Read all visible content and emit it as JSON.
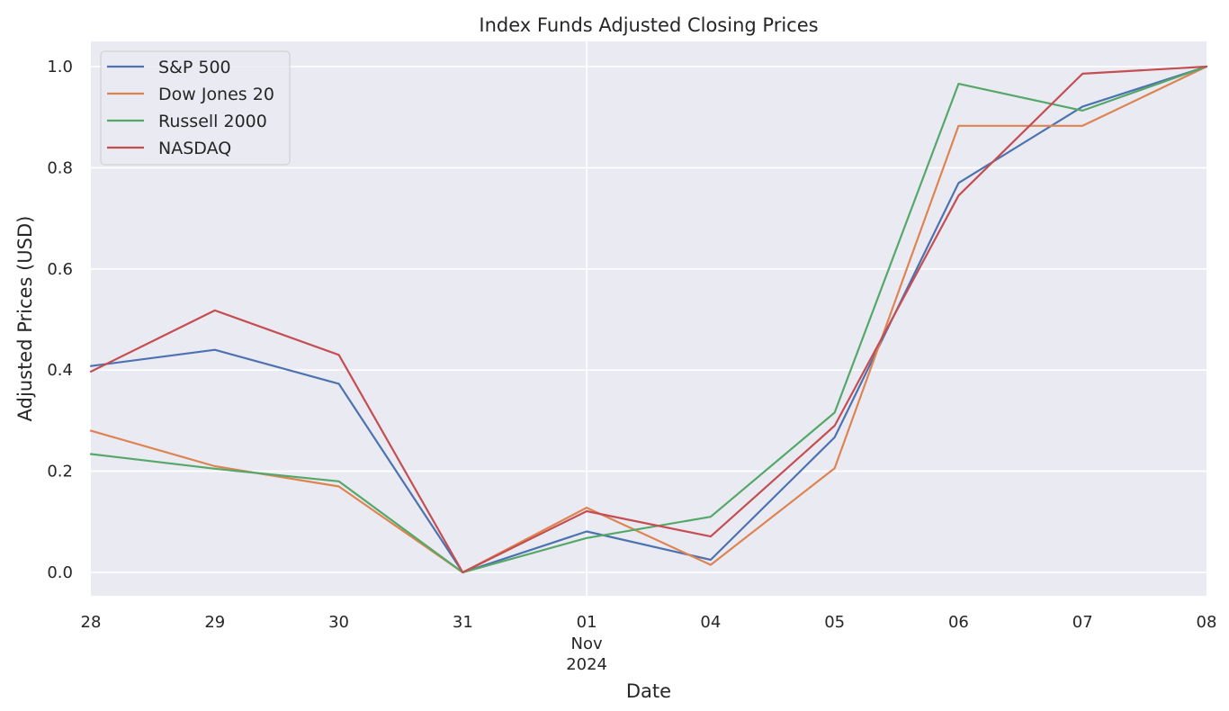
{
  "chart_data": {
    "type": "line",
    "title": "Index Funds Adjusted Closing Prices",
    "xlabel": "Date",
    "ylabel": "Adjusted Prices (USD)",
    "x": [
      "2024-10-28",
      "2024-10-29",
      "2024-10-30",
      "2024-10-31",
      "2024-11-01",
      "2024-11-04",
      "2024-11-05",
      "2024-11-06",
      "2024-11-07",
      "2024-11-08"
    ],
    "x_tick_labels": [
      "28",
      "29",
      "30",
      "31",
      "01",
      "04",
      "05",
      "06",
      "07",
      "08"
    ],
    "x_secondary_label": {
      "month": "Nov",
      "year": "2024"
    },
    "y_ticks": [
      "0.0",
      "0.2",
      "0.4",
      "0.6",
      "0.8",
      "1.0"
    ],
    "ylim": [
      -0.045,
      1.05
    ],
    "grid": true,
    "legend_position": "top-left",
    "series": [
      {
        "name": "S&P 500",
        "color": "#4c72b0",
        "values": [
          0.408,
          0.44,
          0.373,
          0.0,
          0.081,
          0.025,
          0.267,
          0.77,
          0.921,
          1.0
        ]
      },
      {
        "name": "Dow Jones 20",
        "color": "#dd8452",
        "values": [
          0.28,
          0.21,
          0.17,
          0.0,
          0.128,
          0.015,
          0.206,
          0.883,
          0.883,
          1.0
        ]
      },
      {
        "name": "Russell 2000",
        "color": "#55a868",
        "values": [
          0.234,
          0.205,
          0.18,
          0.0,
          0.068,
          0.11,
          0.316,
          0.966,
          0.913,
          1.0
        ]
      },
      {
        "name": "NASDAQ",
        "color": "#c44e52",
        "values": [
          0.397,
          0.518,
          0.43,
          0.0,
          0.121,
          0.071,
          0.29,
          0.745,
          0.986,
          1.0
        ]
      }
    ]
  }
}
